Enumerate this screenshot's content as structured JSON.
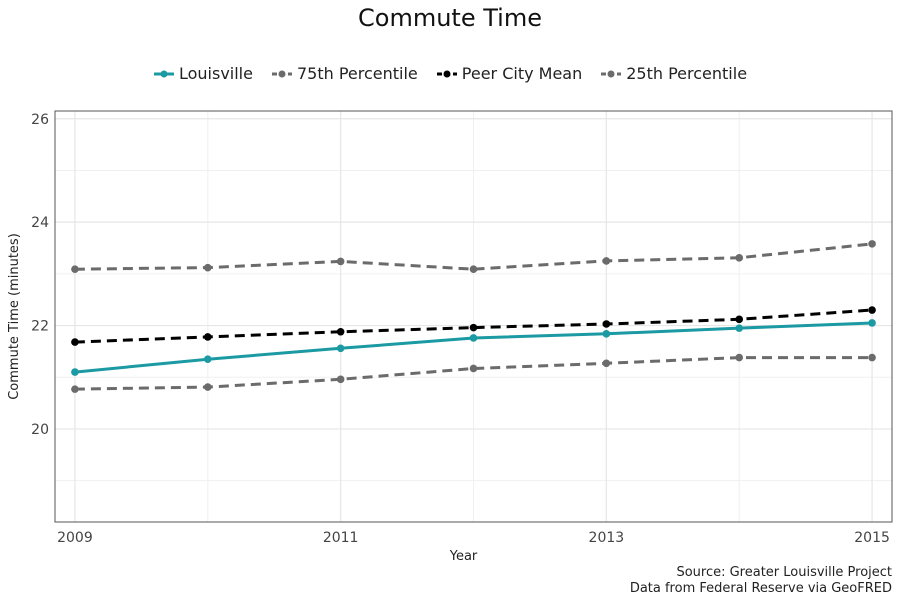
{
  "chart_data": {
    "type": "line",
    "title": "Commute Time",
    "xlabel": "Year",
    "ylabel": "Commute Time (minutes)",
    "x": [
      2009,
      2010,
      2011,
      2012,
      2013,
      2014,
      2015
    ],
    "x_ticks": [
      "2009",
      "2011",
      "2013",
      "2015"
    ],
    "y_ticks": [
      "20",
      "22",
      "24",
      "26"
    ],
    "xlim": [
      2008.85,
      2015.15
    ],
    "ylim": [
      18.2,
      26.15
    ],
    "grid": true,
    "legend_position": "top",
    "series": [
      {
        "name": "Louisville",
        "color": "#1b9aa3",
        "style": "solid",
        "values": [
          21.1,
          21.35,
          21.56,
          21.76,
          21.84,
          21.95,
          22.05
        ]
      },
      {
        "name": "75th Percentile",
        "color": "#6b6b6b",
        "style": "dashed",
        "values": [
          23.09,
          23.12,
          23.24,
          23.09,
          23.25,
          23.31,
          23.58
        ]
      },
      {
        "name": "Peer City Mean",
        "color": "#000000",
        "style": "dashed",
        "values": [
          21.68,
          21.78,
          21.88,
          21.96,
          22.03,
          22.12,
          22.3
        ]
      },
      {
        "name": "25th Percentile",
        "color": "#6b6b6b",
        "style": "dashed",
        "values": [
          20.77,
          20.81,
          20.96,
          21.17,
          21.27,
          21.38,
          21.38
        ]
      }
    ],
    "caption_lines": [
      "Source: Greater Louisville Project",
      "Data from Federal Reserve via GeoFRED"
    ]
  }
}
